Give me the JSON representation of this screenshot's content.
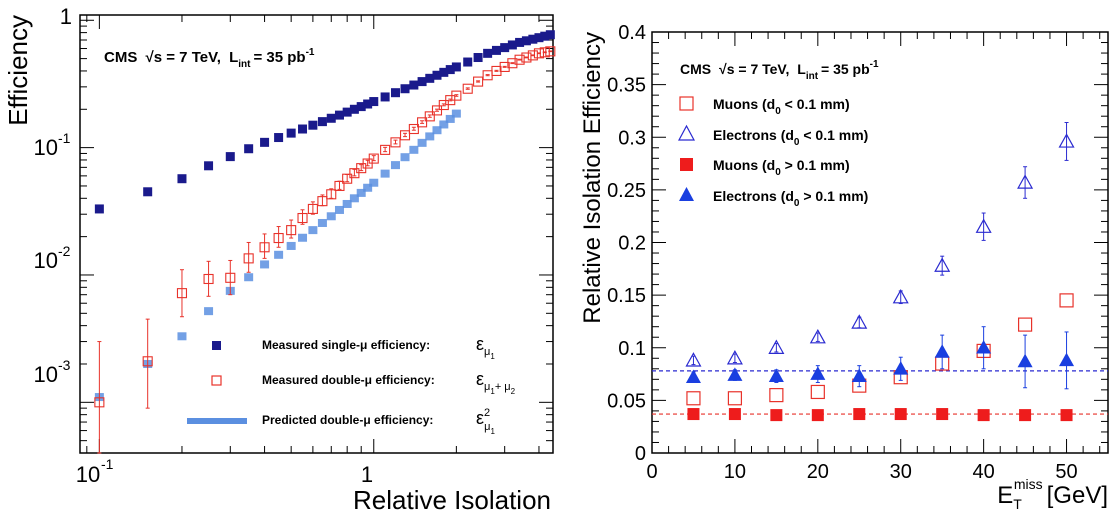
{
  "chart_data": [
    {
      "type": "scatter",
      "xscale": "log",
      "yscale": "log",
      "xlim": [
        0.085,
        4.5
      ],
      "ylim": [
        0.0004,
        1.1
      ],
      "xlabel": "Relative Isolation",
      "ylabel": "Efficiency",
      "x_ticks": [
        "10",
        "1"
      ],
      "y_ticks": [
        "1",
        "10",
        "10",
        "10"
      ],
      "y_tick_exponents": [
        "",
        "-1",
        "-2",
        "-3"
      ],
      "x_tick_exponents": [
        "-1",
        ""
      ],
      "cms_label": {
        "prefix": "CMS",
        "sqrt": "√s = 7 TeV,",
        "lumi": "L",
        "lumi_sub": "int",
        "lumi_val": "= 35 pb",
        "lumi_exp": "-1"
      },
      "legend_position": "bottom-right",
      "series": [
        {
          "name": "Measured single-μ efficiency:",
          "symbol": "ε",
          "symbol_sub": "μ",
          "symbol_subsub": "1",
          "color": "#1a1a8c",
          "marker": "filled-square",
          "x": [
            0.1,
            0.15,
            0.2,
            0.25,
            0.3,
            0.35,
            0.4,
            0.45,
            0.5,
            0.55,
            0.6,
            0.65,
            0.7,
            0.75,
            0.8,
            0.85,
            0.9,
            0.95,
            1.0,
            1.1,
            1.2,
            1.3,
            1.4,
            1.5,
            1.6,
            1.7,
            1.8,
            1.9,
            2.0,
            2.2,
            2.4,
            2.6,
            2.8,
            3.0,
            3.2,
            3.4,
            3.6,
            3.8,
            4.0,
            4.2,
            4.4
          ],
          "y": [
            0.033,
            0.045,
            0.057,
            0.072,
            0.085,
            0.098,
            0.11,
            0.12,
            0.13,
            0.14,
            0.15,
            0.16,
            0.17,
            0.18,
            0.19,
            0.2,
            0.21,
            0.22,
            0.23,
            0.25,
            0.27,
            0.29,
            0.31,
            0.33,
            0.35,
            0.37,
            0.39,
            0.41,
            0.43,
            0.47,
            0.51,
            0.55,
            0.58,
            0.61,
            0.64,
            0.67,
            0.69,
            0.71,
            0.73,
            0.75,
            0.77
          ]
        },
        {
          "name": "Measured double-μ efficiency:",
          "symbol": "ε",
          "symbol_sub": "μ",
          "symbol_subsub": "1",
          "symbol_sub2": "+ μ",
          "symbol_subsub2": "2",
          "color": "#e8322a",
          "marker": "open-square",
          "x": [
            0.1,
            0.15,
            0.2,
            0.25,
            0.3,
            0.35,
            0.4,
            0.45,
            0.5,
            0.55,
            0.6,
            0.65,
            0.7,
            0.75,
            0.8,
            0.85,
            0.9,
            0.95,
            1.0,
            1.1,
            1.2,
            1.3,
            1.4,
            1.5,
            1.6,
            1.7,
            1.8,
            1.9,
            2.0,
            2.2,
            2.4,
            2.6,
            2.8,
            3.0,
            3.2,
            3.4,
            3.6,
            3.8,
            4.0,
            4.2,
            4.4
          ],
          "y": [
            0.001,
            0.0021,
            0.0072,
            0.0093,
            0.0095,
            0.0135,
            0.0165,
            0.0195,
            0.0225,
            0.028,
            0.033,
            0.038,
            0.043,
            0.05,
            0.057,
            0.063,
            0.069,
            0.075,
            0.082,
            0.096,
            0.11,
            0.125,
            0.14,
            0.158,
            0.176,
            0.196,
            0.216,
            0.236,
            0.256,
            0.29,
            0.33,
            0.37,
            0.4,
            0.43,
            0.46,
            0.49,
            0.51,
            0.53,
            0.55,
            0.56,
            0.57
          ],
          "err_lo": [
            0.0006,
            0.0012,
            0.0025,
            0.0025,
            0.0025,
            0.003,
            0.003,
            0.003,
            0.003,
            0.003,
            0.003,
            0.003,
            0.003,
            0.003,
            0.003,
            0.003,
            0.003,
            0.003,
            0.003,
            0.003,
            0.003,
            0.003,
            0.003,
            0.003,
            0.003,
            0.003,
            0.003,
            0.003,
            0.003,
            0.003,
            0.003,
            0.003,
            0.003,
            0.003,
            0.003,
            0.003,
            0.003,
            0.003,
            0.003,
            0.003,
            0.003
          ],
          "err_hi": [
            0.002,
            0.0024,
            0.0038,
            0.0035,
            0.0035,
            0.0045,
            0.0045,
            0.0045,
            0.0045,
            0.0045,
            0.0045,
            0.0045,
            0.0045,
            0.0045,
            0.0045,
            0.0045,
            0.0045,
            0.0045,
            0.0045,
            0.0045,
            0.0045,
            0.0045,
            0.0045,
            0.0045,
            0.0045,
            0.0045,
            0.0045,
            0.0045,
            0.0045,
            0.0045,
            0.0045,
            0.0045,
            0.0045,
            0.0045,
            0.0045,
            0.0045,
            0.0045,
            0.0045,
            0.0045,
            0.0045,
            0.0045
          ]
        },
        {
          "name": "Predicted double-μ  efficiency:",
          "symbol": "ε",
          "symbol_sup": "2",
          "symbol_sub": "μ",
          "symbol_subsub": "1",
          "color": "#5b8fe0",
          "marker": "filled-band",
          "x": [
            0.1,
            0.15,
            0.2,
            0.25,
            0.3,
            0.35,
            0.4,
            0.45,
            0.5,
            0.55,
            0.6,
            0.65,
            0.7,
            0.75,
            0.8,
            0.85,
            0.9,
            0.95,
            1.0,
            1.1,
            1.2,
            1.3,
            1.4,
            1.5,
            1.6,
            1.7,
            1.8,
            1.9,
            2.0
          ],
          "y": [
            0.0011,
            0.002,
            0.0033,
            0.0052,
            0.0075,
            0.0096,
            0.0121,
            0.0144,
            0.0169,
            0.0196,
            0.0225,
            0.0256,
            0.0289,
            0.0324,
            0.0361,
            0.04,
            0.0441,
            0.0484,
            0.053,
            0.0625,
            0.0729,
            0.0841,
            0.0961,
            0.109,
            0.1225,
            0.137,
            0.152,
            0.168,
            0.185
          ]
        }
      ]
    },
    {
      "type": "scatter",
      "xlim": [
        0,
        55
      ],
      "ylim": [
        0,
        0.4
      ],
      "xlabel": "E",
      "xlabel_sub": "T",
      "xlabel_sup": "miss",
      "xlabel_unit": "[GeV]",
      "ylabel": "Relative Isolation Efficiency",
      "x_ticks": [
        "0",
        "10",
        "20",
        "30",
        "40",
        "50"
      ],
      "y_ticks": [
        "0",
        "0.05",
        "0.1",
        "0.15",
        "0.2",
        "0.25",
        "0.3",
        "0.35",
        "0.4"
      ],
      "cms_label": {
        "prefix": "CMS",
        "sqrt": "√s = 7 TeV,",
        "lumi": "L",
        "lumi_sub": "int",
        "lumi_val": "= 35 pb",
        "lumi_exp": "-1"
      },
      "legend_position": "top-left",
      "reference_lines": [
        {
          "y": 0.078,
          "color": "#2a2ad0"
        },
        {
          "y": 0.037,
          "color": "#e8322a"
        }
      ],
      "series": [
        {
          "name": "Muons (d",
          "name_sub": "0",
          "name_rest": " < 0.1 mm)",
          "color": "#e8322a",
          "marker": "open-square",
          "x": [
            5,
            10,
            15,
            20,
            25,
            30,
            35,
            40,
            45,
            50
          ],
          "y": [
            0.052,
            0.052,
            0.055,
            0.058,
            0.064,
            0.072,
            0.085,
            0.097,
            0.122,
            0.145
          ]
        },
        {
          "name": "Electrons (d",
          "name_sub": "0",
          "name_rest": " < 0.1 mm)",
          "color": "#2a2ad0",
          "marker": "open-triangle",
          "x": [
            5,
            10,
            15,
            20,
            25,
            30,
            35,
            40,
            45,
            50
          ],
          "y": [
            0.088,
            0.09,
            0.1,
            0.11,
            0.124,
            0.148,
            0.178,
            0.215,
            0.257,
            0.296
          ],
          "err": [
            0.004,
            0.004,
            0.004,
            0.004,
            0.005,
            0.006,
            0.009,
            0.013,
            0.015,
            0.018
          ]
        },
        {
          "name": "Muons (d",
          "name_sub": "0",
          "name_rest": " > 0.1 mm)",
          "color": "#ee1c1c",
          "marker": "filled-square",
          "x": [
            5,
            10,
            15,
            20,
            25,
            30,
            35,
            40,
            45,
            50
          ],
          "y": [
            0.037,
            0.037,
            0.036,
            0.036,
            0.037,
            0.037,
            0.037,
            0.036,
            0.036,
            0.036
          ]
        },
        {
          "name": "Electrons (d",
          "name_sub": "0",
          "name_rest": " > 0.1 mm)",
          "color": "#1a3fe0",
          "marker": "filled-triangle",
          "x": [
            5,
            10,
            15,
            20,
            25,
            30,
            35,
            40,
            45,
            50
          ],
          "y": [
            0.072,
            0.074,
            0.073,
            0.075,
            0.073,
            0.08,
            0.096,
            0.1,
            0.087,
            0.088
          ],
          "err": [
            0.005,
            0.005,
            0.006,
            0.008,
            0.01,
            0.011,
            0.016,
            0.02,
            0.025,
            0.027
          ]
        }
      ]
    }
  ]
}
